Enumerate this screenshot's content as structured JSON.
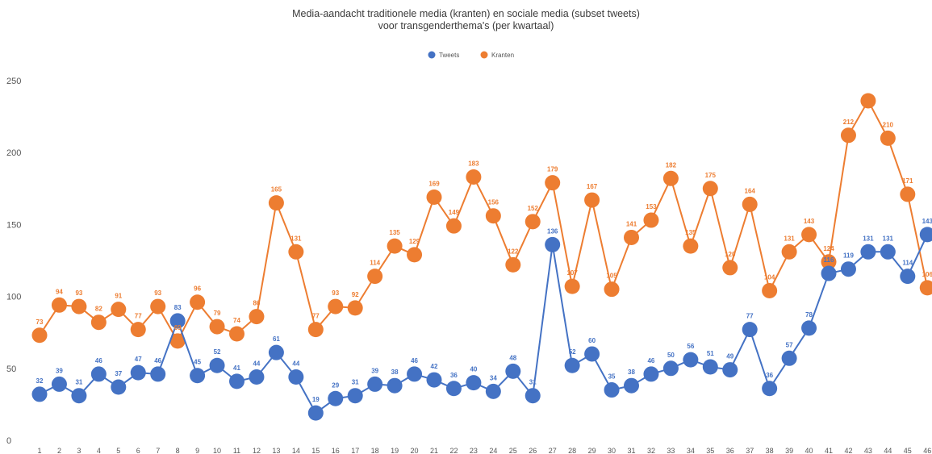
{
  "chart_data": {
    "type": "line",
    "title": [
      "Media-aandacht traditionele media (kranten) en sociale media (subset tweets)",
      "voor transgenderthema's (per kwartaal)"
    ],
    "x": [
      1,
      2,
      3,
      4,
      5,
      6,
      7,
      8,
      9,
      10,
      11,
      12,
      13,
      14,
      15,
      16,
      17,
      18,
      19,
      20,
      21,
      22,
      23,
      24,
      25,
      26,
      27,
      28,
      29,
      30,
      31,
      32,
      33,
      34,
      35,
      36,
      37,
      38,
      39,
      40,
      41,
      42,
      43,
      44,
      45,
      46
    ],
    "y_ticks": [
      0,
      50,
      100,
      150,
      200,
      250
    ],
    "ylim": [
      0,
      250
    ],
    "legend_position": "top-center",
    "series": [
      {
        "name": "Tweets",
        "color": "#4472c4",
        "values": [
          32,
          39,
          31,
          46,
          37,
          47,
          46,
          83,
          45,
          52,
          41,
          44,
          61,
          44,
          19,
          29,
          31,
          39,
          38,
          46,
          42,
          36,
          40,
          34,
          48,
          31,
          136,
          52,
          60,
          35,
          38,
          46,
          50,
          56,
          51,
          49,
          77,
          36,
          57,
          78,
          116,
          119,
          131,
          131,
          114,
          143
        ]
      },
      {
        "name": "Kranten",
        "color": "#ed7d31",
        "values": [
          73,
          94,
          93,
          82,
          91,
          77,
          93,
          69,
          96,
          79,
          74,
          86,
          165,
          131,
          77,
          93,
          92,
          114,
          135,
          129,
          169,
          149,
          183,
          156,
          122,
          152,
          179,
          107,
          167,
          105,
          141,
          153,
          182,
          135,
          175,
          120,
          164,
          104,
          131,
          143,
          124,
          212,
          236,
          210,
          171,
          106
        ]
      }
    ],
    "data_labels": {
      "Tweets": [
        "32",
        "39",
        "31",
        "46",
        "37",
        "47",
        "46",
        "83",
        "45",
        "52",
        "41",
        "44",
        "61",
        "44",
        "19",
        "29",
        "31",
        "39",
        "38",
        "46",
        "42",
        "36",
        "40",
        "34",
        "48",
        "31",
        "136",
        "52",
        "60",
        "35",
        "38",
        "46",
        "50",
        "56",
        "51",
        "49",
        "77",
        "36",
        "57",
        "78",
        "116",
        "119",
        "131",
        "131",
        "114",
        "143"
      ],
      "Kranten": [
        "73",
        "94",
        "93",
        "82",
        "91",
        "77",
        "93",
        "69",
        "96",
        "79",
        "74",
        "86",
        "165",
        "131",
        "77",
        "93",
        "92",
        "114",
        "135",
        "129",
        "169",
        "149",
        "183",
        "156",
        "122",
        "152",
        "179",
        "107",
        "167",
        "105",
        "141",
        "153",
        "182",
        "135",
        "175",
        "120",
        "164",
        "104",
        "131",
        "143",
        "124",
        "212",
        "",
        "210",
        "171",
        "106"
      ]
    }
  }
}
